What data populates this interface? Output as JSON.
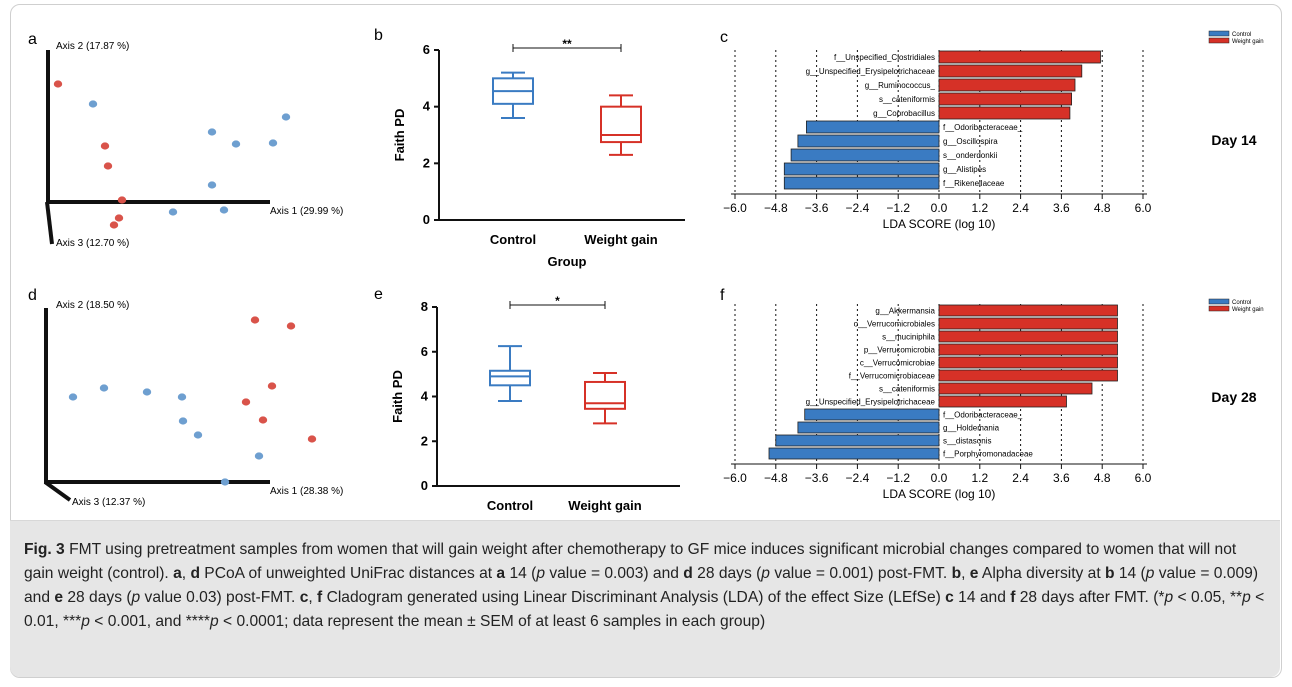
{
  "panels": {
    "a": "a",
    "b": "b",
    "c": "c",
    "d": "d",
    "e": "e",
    "f": "f"
  },
  "pcoa_day14": {
    "axis1": "Axis 1 (29.99 %)",
    "axis2": "Axis 2 (17.87 %)",
    "axis3": "Axis 3 (12.70 %)",
    "control_color": "#6e9fd0",
    "weight_color": "#d9534a"
  },
  "pcoa_day28": {
    "axis1": "Axis 1 (28.38 %)",
    "axis2": "Axis 2 (18.50 %)",
    "axis3": "Axis 3 (12.37 %)"
  },
  "box_common": {
    "ylabel": "Faith PD",
    "xlabel": "Group",
    "categories": [
      "Control",
      "Weight gain"
    ],
    "colors": [
      "#3a7bc2",
      "#d63127"
    ]
  },
  "chart_data": [
    {
      "type": "scatter",
      "panel": "a",
      "x": [],
      "series": []
    },
    {
      "type": "box",
      "panel": "b",
      "categories": [
        "Control",
        "Weight gain"
      ],
      "ylabel": "Faith PD",
      "xlabel": "Group",
      "ylim": [
        0,
        6
      ],
      "yticks": [
        0,
        2,
        4,
        6
      ],
      "significance": "**",
      "boxes": [
        {
          "min": 3.6,
          "q1": 4.1,
          "median": 4.55,
          "q3": 5.0,
          "max": 5.2
        },
        {
          "min": 2.3,
          "q1": 2.75,
          "median": 3.0,
          "q3": 4.0,
          "max": 4.4
        }
      ]
    },
    {
      "type": "bar",
      "panel": "c",
      "title": "Day 14",
      "xlabel": "LDA SCORE (log 10)",
      "xlim": [
        -6.0,
        6.0
      ],
      "xticks": [
        "-6.0",
        "-4.8",
        "-3.6",
        "-2.4",
        "-1.2",
        "0.0",
        "1.2",
        "2.4",
        "3.6",
        "4.8",
        "6.0"
      ],
      "legend": [
        "Control",
        "Weight gain"
      ],
      "bars": [
        {
          "label": "f__Unspecified_Clostridiales",
          "value": 4.75,
          "group": "Weight gain"
        },
        {
          "label": "g__Unspecified_Erysipelotrichaceae",
          "value": 4.2,
          "group": "Weight gain"
        },
        {
          "label": "g__Ruminococcus_",
          "value": 4.0,
          "group": "Weight gain"
        },
        {
          "label": "s__cateniformis",
          "value": 3.9,
          "group": "Weight gain"
        },
        {
          "label": "g__Coprobacillus",
          "value": 3.85,
          "group": "Weight gain"
        },
        {
          "label": "f__Odoribacteraceae_",
          "value": -3.9,
          "group": "Control"
        },
        {
          "label": "g__Oscillospira",
          "value": -4.15,
          "group": "Control"
        },
        {
          "label": "s__onderdonkii",
          "value": -4.35,
          "group": "Control"
        },
        {
          "label": "g__Alistipes",
          "value": -4.55,
          "group": "Control"
        },
        {
          "label": "f__Rikenellaceae",
          "value": -4.55,
          "group": "Control"
        }
      ]
    },
    {
      "type": "scatter",
      "panel": "d",
      "x": [],
      "series": []
    },
    {
      "type": "box",
      "panel": "e",
      "categories": [
        "Control",
        "Weight gain"
      ],
      "ylabel": "Faith PD",
      "xlabel": "Group",
      "ylim": [
        0,
        8
      ],
      "yticks": [
        0,
        2,
        4,
        6,
        8
      ],
      "significance": "*",
      "boxes": [
        {
          "min": 3.8,
          "q1": 4.5,
          "median": 4.9,
          "q3": 5.15,
          "max": 6.25
        },
        {
          "min": 2.8,
          "q1": 3.45,
          "median": 3.7,
          "q3": 4.65,
          "max": 5.05
        }
      ]
    },
    {
      "type": "bar",
      "panel": "f",
      "title": "Day 28",
      "xlabel": "LDA SCORE (log 10)",
      "xlim": [
        -6.0,
        6.0
      ],
      "xticks": [
        "-6.0",
        "-4.8",
        "-3.6",
        "-2.4",
        "-1.2",
        "0.0",
        "1.2",
        "2.4",
        "3.6",
        "4.8",
        "6.0"
      ],
      "legend": [
        "Control",
        "Weight gain"
      ],
      "bars": [
        {
          "label": "g__Akkermansia",
          "value": 5.25,
          "group": "Weight gain"
        },
        {
          "label": "o__Verrucomicrobiales",
          "value": 5.25,
          "group": "Weight gain"
        },
        {
          "label": "s__muciniphila",
          "value": 5.25,
          "group": "Weight gain"
        },
        {
          "label": "p__Verrucomicrobia",
          "value": 5.25,
          "group": "Weight gain"
        },
        {
          "label": "c__Verrucomicrobiae",
          "value": 5.25,
          "group": "Weight gain"
        },
        {
          "label": "f__Verrucomicrobiaceae",
          "value": 5.25,
          "group": "Weight gain"
        },
        {
          "label": "s__cateniformis",
          "value": 4.5,
          "group": "Weight gain"
        },
        {
          "label": "g__Unspecified_Erysipelotrichaceae",
          "value": 3.75,
          "group": "Weight gain"
        },
        {
          "label": "f__Odoribacteraceae_",
          "value": -3.95,
          "group": "Control"
        },
        {
          "label": "g__Holdemania",
          "value": -4.15,
          "group": "Control"
        },
        {
          "label": "s__distasonis",
          "value": -4.8,
          "group": "Control"
        },
        {
          "label": "f__Porphyromonadaceae",
          "value": -5.0,
          "group": "Control"
        }
      ]
    }
  ],
  "caption": {
    "fig_label": "Fig. 3",
    "text1": " FMT using pretreatment samples from women that will gain weight after chemotherapy to GF mice induces significant microbial changes compared to women that will not gain weight (control). ",
    "a": "a",
    "comma1": ", ",
    "d": "d",
    "text2": " PCoA of unweighted UniFrac distances at ",
    "a2": "a",
    "text3": " 14 (",
    "p1": "p",
    "text4": " value = 0.003) and ",
    "d2": "d",
    "text5": " 28 days (",
    "p2": "p",
    "text6": " value = 0.001) post-FMT. ",
    "b": "b",
    "comma2": ", ",
    "e": "e",
    "text7": " Alpha diversity at ",
    "b2": "b",
    "text8": " 14 (",
    "p3": "p",
    "text9": " value = 0.009) and ",
    "e2": "e",
    "text10": " 28 days (",
    "p4": "p",
    "text11": " value 0.03) post-FMT. ",
    "c": "c",
    "comma3": ", ",
    "f": "f",
    "text12": " Cladogram generated using Linear Discriminant Analysis (LDA) of the effect Size (LEfSe) ",
    "c2": "c",
    "text13": " 14 and ",
    "f2": "f",
    "text14": " 28 days after FMT. (*",
    "p5": "p",
    "text15": " < 0.05, **",
    "p6": "p",
    "text16": " < 0.01, ***",
    "p7": "p",
    "text17": " < 0.001, and ****",
    "p8": "p",
    "text18": " < 0.0001; data represent the mean ± SEM of at least 6 samples in each group)"
  }
}
